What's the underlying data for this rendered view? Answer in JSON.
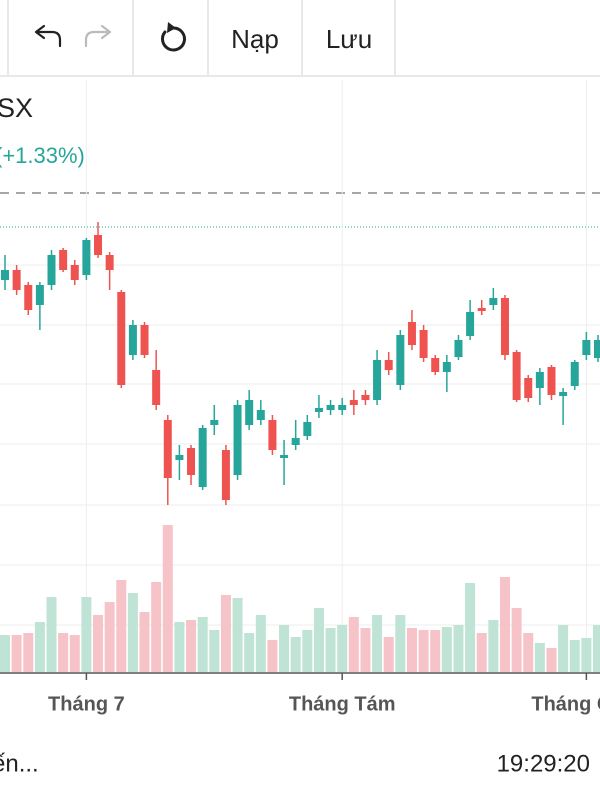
{
  "toolbar": {
    "buttons": [
      "Nạp",
      "Lưu"
    ]
  },
  "chart_data": {
    "type": "candlestick",
    "title": "SX",
    "subtitle": "(+1.33%)",
    "categories": [
      null,
      null,
      null,
      null,
      null,
      null,
      null,
      "Tháng 7",
      null,
      null,
      null,
      null,
      null,
      null,
      null,
      null,
      null,
      null,
      null,
      null,
      null,
      null,
      null,
      null,
      null,
      null,
      null,
      null,
      null,
      "Tháng Tám",
      null,
      null,
      null,
      null,
      null,
      null,
      null,
      null,
      null,
      null,
      null,
      null,
      null,
      null,
      null,
      null,
      null,
      null,
      null,
      null,
      "Tháng Chín",
      null
    ],
    "open": [
      320,
      330,
      315,
      295,
      315,
      350,
      335,
      325,
      365,
      345,
      308,
      245,
      275,
      230,
      180,
      140,
      152,
      113,
      175,
      150,
      125,
      175,
      180,
      180,
      142,
      155,
      164,
      188,
      190,
      190,
      200,
      205,
      200,
      240,
      215,
      278,
      270,
      242,
      228,
      243,
      264,
      292,
      295,
      302,
      248,
      222,
      212,
      233,
      204,
      214,
      245,
      242
    ],
    "high": [
      345,
      335,
      318,
      318,
      350,
      352,
      340,
      362,
      378,
      348,
      310,
      280,
      278,
      250,
      185,
      155,
      155,
      175,
      195,
      155,
      200,
      210,
      200,
      185,
      160,
      180,
      185,
      205,
      200,
      202,
      210,
      210,
      250,
      248,
      270,
      290,
      275,
      245,
      245,
      265,
      300,
      300,
      312,
      305,
      250,
      225,
      232,
      235,
      212,
      240,
      268,
      265
    ],
    "low": [
      310,
      305,
      285,
      270,
      310,
      328,
      315,
      320,
      342,
      310,
      212,
      240,
      242,
      190,
      95,
      120,
      115,
      110,
      165,
      95,
      120,
      170,
      175,
      145,
      115,
      150,
      160,
      182,
      185,
      185,
      185,
      195,
      195,
      225,
      210,
      250,
      238,
      225,
      208,
      240,
      260,
      285,
      290,
      240,
      198,
      198,
      195,
      200,
      175,
      210,
      240,
      238
    ],
    "close": [
      330,
      310,
      290,
      315,
      345,
      330,
      320,
      360,
      345,
      330,
      215,
      275,
      245,
      195,
      122,
      145,
      125,
      172,
      180,
      100,
      195,
      200,
      190,
      150,
      145,
      162,
      178,
      192,
      195,
      195,
      195,
      200,
      240,
      230,
      265,
      255,
      242,
      228,
      238,
      260,
      288,
      289,
      302,
      245,
      200,
      202,
      228,
      205,
      208,
      238,
      260,
      260
    ],
    "volume": [
      37,
      37,
      39,
      50,
      75,
      39,
      37,
      75,
      57,
      70,
      92,
      79,
      60,
      90,
      147,
      50,
      52,
      55,
      42,
      77,
      74,
      39,
      57,
      32,
      47,
      35,
      42,
      64,
      44,
      47,
      55,
      44,
      57,
      35,
      57,
      44,
      42,
      42,
      45,
      47,
      89,
      39,
      52,
      95,
      64,
      39,
      29,
      24,
      47,
      32,
      34,
      47
    ],
    "up_color": "#26a69a",
    "down_color": "#ef5350",
    "volume_up_color": "#bfe3d5",
    "volume_down_color": "#f6c3c8",
    "ylim": [
      80,
      400
    ],
    "y2lim": [
      0,
      200
    ]
  },
  "footer": {
    "status": "ến...",
    "time": "19:29:20"
  }
}
